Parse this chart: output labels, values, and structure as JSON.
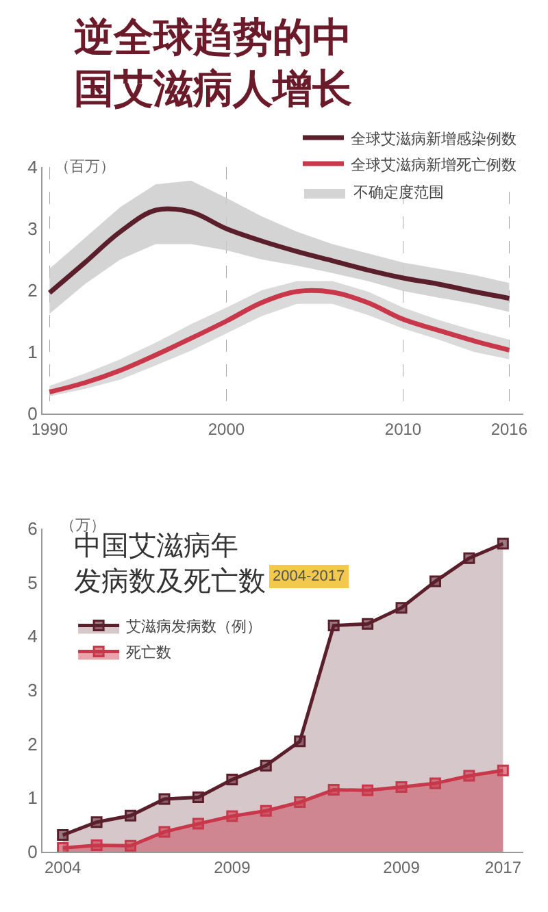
{
  "chart_data": [
    {
      "type": "line",
      "title": "逆全球趋势的中国艾滋病人增长",
      "ylabel": "（百万）",
      "xlim": [
        1989.6,
        2016.8
      ],
      "xticks": [
        1990,
        2000,
        2010,
        2016
      ],
      "ylim": [
        0,
        4
      ],
      "yticks": [
        0,
        1,
        2,
        3,
        4
      ],
      "grid": "x",
      "legend": "top right",
      "annotations": [
        "不确定度范围"
      ],
      "series": [
        {
          "name": "全球艾滋病新增感染例数",
          "color": "#5a1f2b",
          "x": [
            1990,
            1992,
            1994,
            1996,
            1998,
            2000,
            2002,
            2004,
            2006,
            2008,
            2010,
            2012,
            2014,
            2016
          ],
          "values": [
            1.96,
            2.45,
            2.95,
            3.3,
            3.27,
            3.0,
            2.8,
            2.63,
            2.48,
            2.33,
            2.2,
            2.1,
            1.98,
            1.87
          ],
          "upper": [
            2.35,
            2.85,
            3.35,
            3.72,
            3.78,
            3.5,
            3.2,
            2.95,
            2.75,
            2.6,
            2.45,
            2.35,
            2.25,
            2.12
          ],
          "lower": [
            1.62,
            2.1,
            2.5,
            2.75,
            2.75,
            2.65,
            2.5,
            2.4,
            2.28,
            2.15,
            1.99,
            1.88,
            1.78,
            1.65
          ]
        },
        {
          "name": "全球艾滋病新增死亡例数",
          "color": "#c8374a",
          "x": [
            1990,
            1992,
            1994,
            1996,
            1998,
            2000,
            2002,
            2004,
            2006,
            2008,
            2010,
            2012,
            2014,
            2016
          ],
          "values": [
            0.35,
            0.5,
            0.7,
            0.95,
            1.22,
            1.5,
            1.8,
            1.98,
            1.97,
            1.8,
            1.53,
            1.35,
            1.18,
            1.03
          ],
          "upper": [
            0.45,
            0.65,
            0.88,
            1.15,
            1.45,
            1.72,
            2.0,
            2.15,
            2.15,
            1.98,
            1.72,
            1.52,
            1.35,
            1.2
          ],
          "lower": [
            0.28,
            0.4,
            0.55,
            0.78,
            1.02,
            1.3,
            1.58,
            1.78,
            1.78,
            1.6,
            1.38,
            1.2,
            1.0,
            0.88
          ]
        }
      ]
    },
    {
      "type": "area",
      "title": "中国艾滋病年发病数及死亡数",
      "subtitle": "2004-2017",
      "ylabel": "（万）",
      "categories": [
        "2004",
        null,
        null,
        null,
        null,
        "2009",
        null,
        null,
        null,
        null,
        "2009",
        null,
        null,
        "2017"
      ],
      "ylim": [
        0,
        6
      ],
      "yticks": [
        0,
        1,
        2,
        3,
        4,
        5,
        6
      ],
      "grid": false,
      "legend": "left",
      "marker": "square",
      "series": [
        {
          "name": "艾滋病发病数（例）",
          "color": "#5a1f2b",
          "values": [
            0.31,
            0.55,
            0.67,
            0.98,
            1.01,
            1.34,
            1.6,
            2.05,
            4.2,
            4.23,
            4.53,
            5.02,
            5.45,
            5.72
          ]
        },
        {
          "name": "死亡数",
          "color": "#c8374a",
          "values": [
            0.07,
            0.12,
            0.11,
            0.37,
            0.52,
            0.66,
            0.76,
            0.92,
            1.15,
            1.14,
            1.2,
            1.27,
            1.41,
            1.51
          ]
        }
      ]
    }
  ]
}
